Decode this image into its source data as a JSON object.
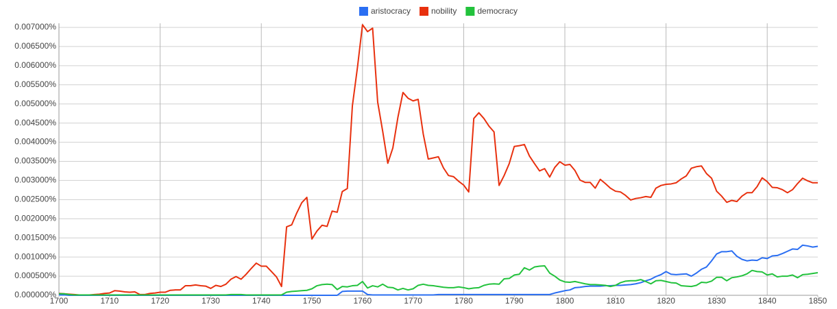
{
  "chart_data": {
    "type": "line",
    "x": [
      1700,
      1701,
      1702,
      1703,
      1704,
      1705,
      1706,
      1707,
      1708,
      1709,
      1710,
      1711,
      1712,
      1713,
      1714,
      1715,
      1716,
      1717,
      1718,
      1719,
      1720,
      1721,
      1722,
      1723,
      1724,
      1725,
      1726,
      1727,
      1728,
      1729,
      1730,
      1731,
      1732,
      1733,
      1734,
      1735,
      1736,
      1737,
      1738,
      1739,
      1740,
      1741,
      1742,
      1743,
      1744,
      1745,
      1746,
      1747,
      1748,
      1749,
      1750,
      1751,
      1752,
      1753,
      1754,
      1755,
      1756,
      1757,
      1758,
      1759,
      1760,
      1761,
      1762,
      1763,
      1764,
      1765,
      1766,
      1767,
      1768,
      1769,
      1770,
      1771,
      1772,
      1773,
      1774,
      1775,
      1776,
      1777,
      1778,
      1779,
      1780,
      1781,
      1782,
      1783,
      1784,
      1785,
      1786,
      1787,
      1788,
      1789,
      1790,
      1791,
      1792,
      1793,
      1794,
      1795,
      1796,
      1797,
      1798,
      1799,
      1800,
      1801,
      1802,
      1803,
      1804,
      1805,
      1806,
      1807,
      1808,
      1809,
      1810,
      1811,
      1812,
      1813,
      1814,
      1815,
      1816,
      1817,
      1818,
      1819,
      1820,
      1821,
      1822,
      1823,
      1824,
      1825,
      1826,
      1827,
      1828,
      1829,
      1830,
      1831,
      1832,
      1833,
      1834,
      1835,
      1836,
      1837,
      1838,
      1839,
      1840,
      1841,
      1842,
      1843,
      1844,
      1845,
      1846,
      1847,
      1848,
      1849,
      1850
    ],
    "series": [
      {
        "name": "aristocracy",
        "color": "#2a6ef2",
        "values": [
          1e-05,
          1e-05,
          0,
          0,
          0,
          0,
          0,
          0,
          0,
          0,
          0,
          0,
          0,
          0,
          0,
          0,
          0,
          0,
          0,
          0,
          0,
          0,
          0,
          0,
          0,
          0,
          0,
          0,
          0,
          0,
          0,
          0,
          0,
          0,
          0,
          0,
          0,
          0,
          0,
          0,
          0,
          0,
          0,
          0,
          0,
          0,
          0,
          0,
          0,
          0,
          0,
          0,
          0,
          0,
          0,
          0,
          0.0001,
          0.00011,
          0.00011,
          0.00011,
          0.00011,
          2e-05,
          1e-05,
          1e-05,
          1e-05,
          1e-05,
          1e-05,
          1e-05,
          1e-05,
          1e-05,
          1e-05,
          1e-05,
          1e-05,
          1e-05,
          1e-05,
          2e-05,
          2e-05,
          2e-05,
          2e-05,
          2e-05,
          2e-05,
          2e-05,
          2e-05,
          2e-05,
          2e-05,
          2e-05,
          2e-05,
          2e-05,
          2e-05,
          2e-05,
          2e-05,
          2e-05,
          2e-05,
          2e-05,
          2e-05,
          2e-05,
          2e-05,
          2e-05,
          6e-05,
          9e-05,
          0.00012,
          0.00014,
          0.0002,
          0.00021,
          0.00023,
          0.00024,
          0.00024,
          0.00024,
          0.00025,
          0.00025,
          0.00026,
          0.00026,
          0.00027,
          0.00028,
          0.0003,
          0.00033,
          0.00038,
          0.00042,
          0.00049,
          0.00054,
          0.00062,
          0.00055,
          0.00054,
          0.00055,
          0.00056,
          0.0005,
          0.00058,
          0.00068,
          0.00074,
          0.0009,
          0.00108,
          0.00114,
          0.00114,
          0.00116,
          0.00102,
          0.00094,
          0.0009,
          0.00092,
          0.00091,
          0.00098,
          0.00096,
          0.00103,
          0.00104,
          0.00109,
          0.00115,
          0.00121,
          0.0012,
          0.00131,
          0.00129,
          0.00126,
          0.00128
        ]
      },
      {
        "name": "nobility",
        "color": "#e8300e",
        "values": [
          5e-05,
          4e-05,
          3e-05,
          2e-05,
          1e-05,
          1e-05,
          1e-05,
          2e-05,
          3e-05,
          5e-05,
          6e-05,
          0.00012,
          0.00011,
          9e-05,
          8e-05,
          9e-05,
          2e-05,
          2e-05,
          5e-05,
          6e-05,
          8e-05,
          8e-05,
          0.00013,
          0.00014,
          0.00014,
          0.00025,
          0.00025,
          0.00027,
          0.00025,
          0.00024,
          0.00018,
          0.00026,
          0.00023,
          0.00029,
          0.00042,
          0.00049,
          0.00042,
          0.00055,
          0.0007,
          0.00084,
          0.00076,
          0.00076,
          0.00062,
          0.00048,
          0.00023,
          0.00179,
          0.00184,
          0.00215,
          0.00242,
          0.00256,
          0.00147,
          0.00168,
          0.00183,
          0.0018,
          0.0022,
          0.00217,
          0.00271,
          0.00279,
          0.00495,
          0.00595,
          0.00707,
          0.00689,
          0.00698,
          0.00505,
          0.00428,
          0.00345,
          0.00385,
          0.00465,
          0.0053,
          0.00515,
          0.00508,
          0.00512,
          0.00422,
          0.00356,
          0.00359,
          0.00362,
          0.00333,
          0.00313,
          0.0031,
          0.00298,
          0.00288,
          0.0027,
          0.00462,
          0.00477,
          0.00462,
          0.00442,
          0.00427,
          0.00287,
          0.00313,
          0.00344,
          0.00389,
          0.00391,
          0.00394,
          0.00364,
          0.00344,
          0.00325,
          0.00331,
          0.00309,
          0.00334,
          0.00349,
          0.0034,
          0.00342,
          0.00326,
          0.00301,
          0.00295,
          0.00295,
          0.0028,
          0.00303,
          0.00292,
          0.0028,
          0.00272,
          0.0027,
          0.00261,
          0.00249,
          0.00253,
          0.00255,
          0.00258,
          0.00256,
          0.0028,
          0.00287,
          0.0029,
          0.00291,
          0.00294,
          0.00304,
          0.00312,
          0.00332,
          0.00336,
          0.00338,
          0.00318,
          0.00306,
          0.00272,
          0.00259,
          0.00243,
          0.00248,
          0.00245,
          0.00259,
          0.00268,
          0.00268,
          0.00284,
          0.00307,
          0.00297,
          0.00282,
          0.00281,
          0.00276,
          0.00268,
          0.00276,
          0.00292,
          0.00306,
          0.00299,
          0.00294,
          0.00294
        ]
      },
      {
        "name": "democracy",
        "color": "#22c23c",
        "values": [
          4e-05,
          4e-05,
          2e-05,
          1e-05,
          1e-05,
          1e-05,
          1e-05,
          1e-05,
          1e-05,
          1e-05,
          1e-05,
          1e-05,
          1e-05,
          1e-05,
          1e-05,
          1e-05,
          1e-05,
          1e-05,
          1e-05,
          1e-05,
          1e-05,
          1e-05,
          1e-05,
          1e-05,
          1e-05,
          1e-05,
          1e-05,
          1e-05,
          1e-05,
          1e-05,
          1e-05,
          1e-05,
          1e-05,
          1e-05,
          2e-05,
          2e-05,
          2e-05,
          1e-05,
          1e-05,
          1e-05,
          1e-05,
          1e-05,
          1e-05,
          1e-05,
          1e-05,
          8e-05,
          0.0001,
          0.00011,
          0.00012,
          0.00013,
          0.00017,
          0.00025,
          0.00028,
          0.00029,
          0.00028,
          0.00015,
          0.00023,
          0.00022,
          0.00025,
          0.00026,
          0.00036,
          0.00019,
          0.00025,
          0.00022,
          0.00029,
          0.00021,
          0.0002,
          0.00014,
          0.00018,
          0.00014,
          0.00017,
          0.00026,
          0.00029,
          0.00026,
          0.00025,
          0.00023,
          0.00021,
          0.0002,
          0.0002,
          0.00022,
          0.0002,
          0.00017,
          0.00019,
          0.0002,
          0.00026,
          0.00029,
          0.0003,
          0.00029,
          0.00043,
          0.00044,
          0.00053,
          0.00055,
          0.00072,
          0.00066,
          0.00074,
          0.00076,
          0.00077,
          0.00058,
          0.0005,
          0.0004,
          0.00035,
          0.00034,
          0.00036,
          0.00033,
          0.0003,
          0.00028,
          0.00028,
          0.00027,
          0.00026,
          0.00023,
          0.00026,
          0.00033,
          0.00037,
          0.00038,
          0.00038,
          0.00041,
          0.00036,
          0.0003,
          0.00038,
          0.00039,
          0.00036,
          0.00033,
          0.00032,
          0.00025,
          0.00024,
          0.00023,
          0.00026,
          0.00034,
          0.00033,
          0.00037,
          0.00047,
          0.00047,
          0.00038,
          0.00046,
          0.00048,
          0.00051,
          0.00056,
          0.00065,
          0.00062,
          0.00061,
          0.00053,
          0.00056,
          0.00048,
          0.0005,
          0.0005,
          0.00053,
          0.00046,
          0.00054,
          0.00055,
          0.00057,
          0.00059
        ]
      }
    ],
    "xlim": [
      1700,
      1850
    ],
    "xticks": [
      1700,
      1710,
      1720,
      1730,
      1740,
      1750,
      1760,
      1770,
      1780,
      1790,
      1800,
      1810,
      1820,
      1830,
      1840,
      1850
    ],
    "ylim": [
      0,
      0.007
    ],
    "yticks": [
      {
        "value": 0,
        "label": "0.000000%"
      },
      {
        "value": 0.0005,
        "label": "0.000500%"
      },
      {
        "value": 0.001,
        "label": "0.001000%"
      },
      {
        "value": 0.0015,
        "label": "0.001500%"
      },
      {
        "value": 0.002,
        "label": "0.002000%"
      },
      {
        "value": 0.0025,
        "label": "0.002500%"
      },
      {
        "value": 0.003,
        "label": "0.003000%"
      },
      {
        "value": 0.0035,
        "label": "0.003500%"
      },
      {
        "value": 0.004,
        "label": "0.004000%"
      },
      {
        "value": 0.0045,
        "label": "0.004500%"
      },
      {
        "value": 0.005,
        "label": "0.005000%"
      },
      {
        "value": 0.0055,
        "label": "0.005500%"
      },
      {
        "value": 0.006,
        "label": "0.006000%"
      },
      {
        "value": 0.0065,
        "label": "0.006500%"
      },
      {
        "value": 0.007,
        "label": "0.007000%"
      }
    ],
    "grid": true,
    "legend": "top"
  }
}
